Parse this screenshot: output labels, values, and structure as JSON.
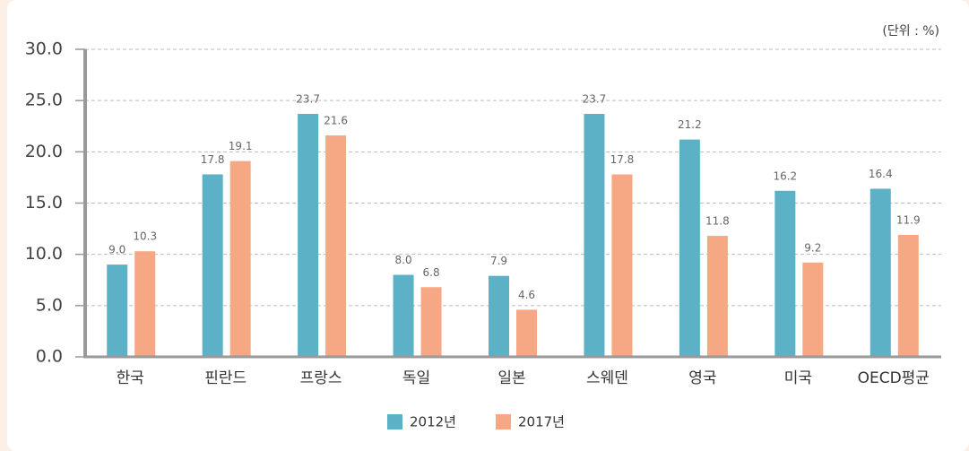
{
  "chart_data": {
    "type": "bar",
    "unit_label": "(단위 : %)",
    "categories": [
      "한국",
      "핀란드",
      "프랑스",
      "독일",
      "일본",
      "스웨덴",
      "영국",
      "미국",
      "OECD평균"
    ],
    "series": [
      {
        "name": "2012년",
        "color": "#5db1c7",
        "values": [
          9.0,
          17.8,
          23.7,
          8.0,
          7.9,
          23.7,
          21.2,
          16.2,
          16.4
        ],
        "value_labels": [
          "9.0",
          "17.8",
          "23.7",
          "8.0",
          "7.9",
          "23.7",
          "21.2",
          "16.2",
          "16.4"
        ]
      },
      {
        "name": "2017년",
        "color": "#f5a883",
        "values": [
          10.3,
          19.1,
          21.6,
          6.8,
          4.6,
          17.8,
          11.8,
          9.2,
          11.9
        ],
        "value_labels": [
          "10.3",
          "19.1",
          "21.6",
          "6.8",
          "4.6",
          "17.8",
          "11.8",
          "9.2",
          "11.9"
        ]
      }
    ],
    "ylim": [
      0,
      30
    ],
    "yticks": [
      {
        "value": 0,
        "label": "0.0"
      },
      {
        "value": 5,
        "label": "5.0"
      },
      {
        "value": 10,
        "label": "10.0"
      },
      {
        "value": 15,
        "label": "15.0"
      },
      {
        "value": 20,
        "label": "20.0"
      },
      {
        "value": 25,
        "label": "25.0"
      },
      {
        "value": 30,
        "label": "30.0"
      }
    ],
    "grid": true,
    "legend": "bottom"
  }
}
